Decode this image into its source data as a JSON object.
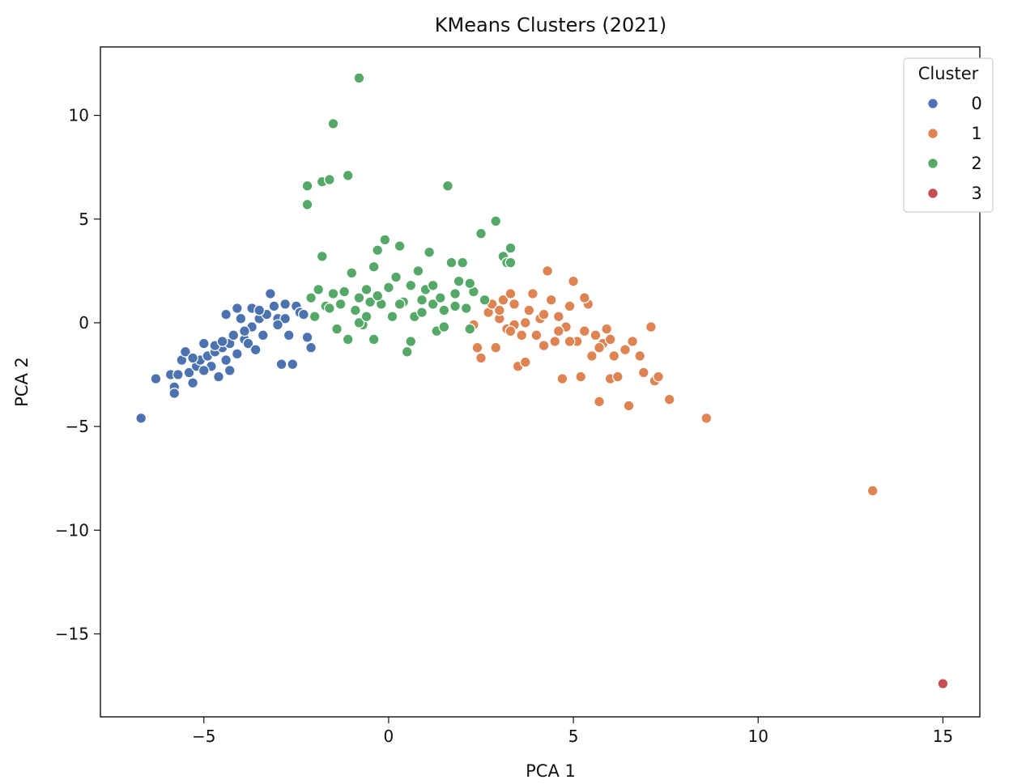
{
  "chart_data": {
    "type": "scatter",
    "title": "KMeans Clusters (2021)",
    "xlabel": "PCA 1",
    "ylabel": "PCA 2",
    "xlim": [
      -7.8,
      16.0
    ],
    "ylim": [
      -19.0,
      13.3
    ],
    "xticks": [
      -5,
      0,
      5,
      10,
      15
    ],
    "yticks": [
      10,
      5,
      0,
      -5,
      -10,
      -15
    ],
    "xtick_labels": [
      "−5",
      "0",
      "5",
      "10",
      "15"
    ],
    "ytick_labels": [
      "10",
      "5",
      "0",
      "−5",
      "−10",
      "−15"
    ],
    "grid": false,
    "legend": {
      "title": "Cluster",
      "placement": "top-right",
      "items": [
        {
          "label": "0",
          "color": "#4c72b0"
        },
        {
          "label": "1",
          "color": "#dd8452"
        },
        {
          "label": "2",
          "color": "#55a868"
        },
        {
          "label": "3",
          "color": "#c44e52"
        }
      ]
    },
    "series": [
      {
        "name": "0",
        "color": "#4c72b0",
        "points": [
          [
            -6.7,
            -4.6
          ],
          [
            -6.3,
            -2.7
          ],
          [
            -5.9,
            -2.5
          ],
          [
            -5.8,
            -3.1
          ],
          [
            -5.8,
            -3.4
          ],
          [
            -5.7,
            -2.5
          ],
          [
            -5.6,
            -1.8
          ],
          [
            -5.5,
            -1.4
          ],
          [
            -5.4,
            -2.4
          ],
          [
            -5.3,
            -2.9
          ],
          [
            -5.2,
            -2.1
          ],
          [
            -5.1,
            -1.8
          ],
          [
            -5.0,
            -1.0
          ],
          [
            -4.9,
            -1.6
          ],
          [
            -4.8,
            -2.1
          ],
          [
            -4.7,
            -1.4
          ],
          [
            -4.6,
            -2.6
          ],
          [
            -4.5,
            -1.2
          ],
          [
            -4.4,
            -1.8
          ],
          [
            -4.3,
            -1.0
          ],
          [
            -4.3,
            -2.3
          ],
          [
            -4.2,
            -0.6
          ],
          [
            -4.1,
            -1.5
          ],
          [
            -4.0,
            0.2
          ],
          [
            -3.9,
            -0.8
          ],
          [
            -3.8,
            -1.0
          ],
          [
            -3.7,
            -0.2
          ],
          [
            -3.6,
            -1.3
          ],
          [
            -3.5,
            0.2
          ],
          [
            -3.4,
            -0.6
          ],
          [
            -3.3,
            0.4
          ],
          [
            -3.2,
            1.4
          ],
          [
            -3.1,
            0.8
          ],
          [
            -3.0,
            0.2
          ],
          [
            -2.9,
            -2.0
          ],
          [
            -2.8,
            0.2
          ],
          [
            -2.7,
            -0.6
          ],
          [
            -2.6,
            -2.0
          ],
          [
            -2.5,
            0.8
          ],
          [
            -2.4,
            0.5
          ],
          [
            -2.3,
            0.4
          ],
          [
            -2.2,
            -0.7
          ],
          [
            -2.1,
            -1.2
          ],
          [
            -4.4,
            0.4
          ],
          [
            -4.1,
            0.7
          ],
          [
            -3.7,
            0.7
          ],
          [
            -3.0,
            -0.1
          ],
          [
            -2.8,
            0.9
          ],
          [
            -5.3,
            -1.7
          ],
          [
            -4.7,
            -1.1
          ],
          [
            -3.9,
            -0.4
          ],
          [
            -3.5,
            0.6
          ],
          [
            -5.0,
            -2.3
          ],
          [
            -4.5,
            -0.9
          ]
        ]
      },
      {
        "name": "1",
        "color": "#dd8452",
        "points": [
          [
            2.3,
            -0.1
          ],
          [
            2.4,
            -1.2
          ],
          [
            2.5,
            -1.7
          ],
          [
            2.7,
            0.5
          ],
          [
            2.8,
            0.9
          ],
          [
            2.9,
            -1.2
          ],
          [
            3.0,
            0.2
          ],
          [
            3.1,
            1.1
          ],
          [
            3.2,
            -0.3
          ],
          [
            3.3,
            1.4
          ],
          [
            3.4,
            0.9
          ],
          [
            3.5,
            -2.1
          ],
          [
            3.6,
            -0.6
          ],
          [
            3.7,
            -1.9
          ],
          [
            3.8,
            0.6
          ],
          [
            3.9,
            1.4
          ],
          [
            4.0,
            -0.6
          ],
          [
            4.1,
            0.2
          ],
          [
            4.2,
            -1.1
          ],
          [
            4.3,
            2.5
          ],
          [
            4.4,
            1.1
          ],
          [
            4.5,
            -0.9
          ],
          [
            4.6,
            0.3
          ],
          [
            4.7,
            -2.7
          ],
          [
            4.8,
            -0.2
          ],
          [
            4.9,
            0.8
          ],
          [
            5.0,
            2.0
          ],
          [
            5.1,
            -0.9
          ],
          [
            5.2,
            -2.6
          ],
          [
            5.3,
            -0.4
          ],
          [
            5.4,
            0.9
          ],
          [
            5.5,
            -1.6
          ],
          [
            5.6,
            -0.6
          ],
          [
            5.7,
            -3.8
          ],
          [
            5.8,
            -1.0
          ],
          [
            5.9,
            -0.3
          ],
          [
            6.0,
            -2.7
          ],
          [
            6.1,
            -1.6
          ],
          [
            6.2,
            -2.6
          ],
          [
            6.4,
            -1.3
          ],
          [
            6.5,
            -4.0
          ],
          [
            6.6,
            -0.9
          ],
          [
            6.8,
            -1.6
          ],
          [
            6.9,
            -2.4
          ],
          [
            7.1,
            -0.2
          ],
          [
            7.2,
            -2.8
          ],
          [
            7.3,
            -2.6
          ],
          [
            7.6,
            -3.7
          ],
          [
            8.6,
            -4.6
          ],
          [
            13.1,
            -8.1
          ],
          [
            3.4,
            -0.1
          ],
          [
            4.6,
            -0.4
          ],
          [
            5.3,
            1.2
          ],
          [
            3.0,
            0.6
          ],
          [
            3.7,
            0.0
          ],
          [
            4.9,
            -0.9
          ],
          [
            5.7,
            -1.2
          ],
          [
            6.0,
            -0.8
          ],
          [
            4.2,
            0.4
          ],
          [
            3.3,
            -0.4
          ]
        ]
      },
      {
        "name": "2",
        "color": "#55a868",
        "points": [
          [
            -2.2,
            6.6
          ],
          [
            -2.2,
            5.7
          ],
          [
            -2.1,
            1.2
          ],
          [
            -2.0,
            0.3
          ],
          [
            -1.9,
            1.6
          ],
          [
            -1.8,
            3.2
          ],
          [
            -1.8,
            6.8
          ],
          [
            -1.7,
            0.8
          ],
          [
            -1.6,
            6.9
          ],
          [
            -1.5,
            9.6
          ],
          [
            -1.5,
            1.4
          ],
          [
            -1.4,
            -0.3
          ],
          [
            -1.3,
            0.9
          ],
          [
            -1.2,
            1.5
          ],
          [
            -1.1,
            7.1
          ],
          [
            -1.1,
            -0.8
          ],
          [
            -1.0,
            2.4
          ],
          [
            -0.9,
            0.6
          ],
          [
            -0.8,
            11.8
          ],
          [
            -0.8,
            1.2
          ],
          [
            -0.7,
            -0.1
          ],
          [
            -0.6,
            1.6
          ],
          [
            -0.5,
            1.0
          ],
          [
            -0.4,
            2.7
          ],
          [
            -0.4,
            -0.8
          ],
          [
            -0.3,
            3.5
          ],
          [
            -0.2,
            0.9
          ],
          [
            -0.1,
            4.0
          ],
          [
            0.0,
            1.7
          ],
          [
            0.1,
            0.3
          ],
          [
            0.2,
            2.2
          ],
          [
            0.3,
            3.7
          ],
          [
            0.4,
            1.0
          ],
          [
            0.5,
            -1.4
          ],
          [
            0.6,
            1.8
          ],
          [
            0.7,
            0.3
          ],
          [
            0.8,
            2.5
          ],
          [
            0.9,
            0.5
          ],
          [
            1.0,
            1.6
          ],
          [
            1.1,
            3.4
          ],
          [
            1.2,
            0.9
          ],
          [
            1.3,
            -0.4
          ],
          [
            1.4,
            1.2
          ],
          [
            1.5,
            0.6
          ],
          [
            1.6,
            6.6
          ],
          [
            1.7,
            2.9
          ],
          [
            1.8,
            1.4
          ],
          [
            1.9,
            2.0
          ],
          [
            2.0,
            2.9
          ],
          [
            2.1,
            0.7
          ],
          [
            2.2,
            -0.3
          ],
          [
            2.3,
            1.5
          ],
          [
            2.5,
            4.3
          ],
          [
            2.6,
            1.1
          ],
          [
            2.9,
            4.9
          ],
          [
            3.1,
            3.2
          ],
          [
            3.2,
            2.9
          ],
          [
            3.3,
            3.6
          ],
          [
            3.3,
            2.9
          ],
          [
            0.6,
            -0.9
          ],
          [
            -0.8,
            0.0
          ],
          [
            0.3,
            0.9
          ],
          [
            1.2,
            1.8
          ],
          [
            -0.3,
            1.3
          ],
          [
            0.9,
            1.1
          ],
          [
            1.8,
            0.8
          ],
          [
            -1.6,
            0.7
          ],
          [
            -0.6,
            0.3
          ],
          [
            1.5,
            -0.2
          ],
          [
            2.2,
            1.9
          ]
        ]
      },
      {
        "name": "3",
        "color": "#c44e52",
        "points": [
          [
            15.0,
            -17.4
          ]
        ]
      }
    ]
  }
}
